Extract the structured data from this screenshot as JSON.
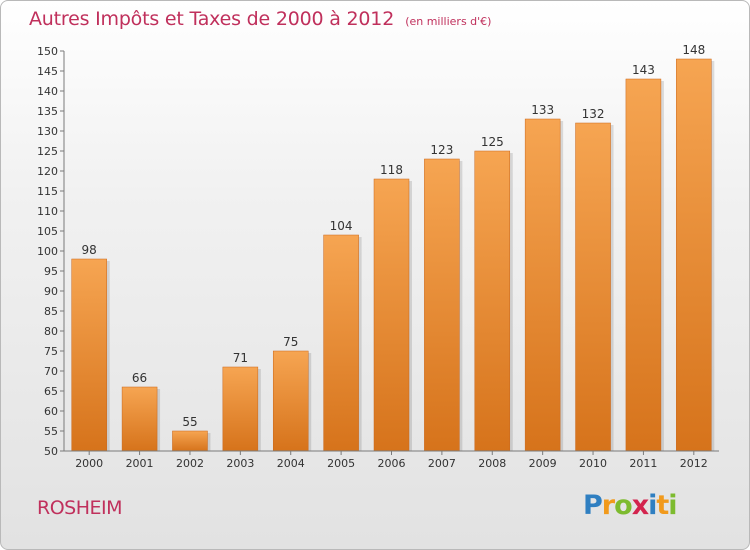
{
  "header": {
    "title": "Autres Impôts et Taxes de 2000 à 2012",
    "unit": "(en milliers d'€)"
  },
  "footer": {
    "city": "ROSHEIM",
    "logo_letters": [
      "P",
      "r",
      "o",
      "x",
      "i",
      "t",
      "i"
    ],
    "logo_colors": [
      "#2f7fc1",
      "#f19a1c",
      "#7dbb2f",
      "#d3244e",
      "#2f7fc1",
      "#f19a1c",
      "#7dbb2f"
    ]
  },
  "colors": {
    "title": "#c0305c",
    "bar_light": "#f6a552",
    "bar_dark": "#d6731b",
    "axis": "#7a7a7a",
    "label": "#333333"
  },
  "chart_data": {
    "type": "bar",
    "title": "Autres Impôts et Taxes de 2000 à 2012",
    "subtitle": "(en milliers d'€)",
    "categories": [
      "2000",
      "2001",
      "2002",
      "2003",
      "2004",
      "2005",
      "2006",
      "2007",
      "2008",
      "2009",
      "2010",
      "2011",
      "2012"
    ],
    "values": [
      98,
      66,
      55,
      71,
      75,
      104,
      118,
      123,
      125,
      133,
      132,
      143,
      148
    ],
    "ylim": [
      50,
      150
    ],
    "ytick_step": 5,
    "grid": false,
    "data_labels": true
  }
}
